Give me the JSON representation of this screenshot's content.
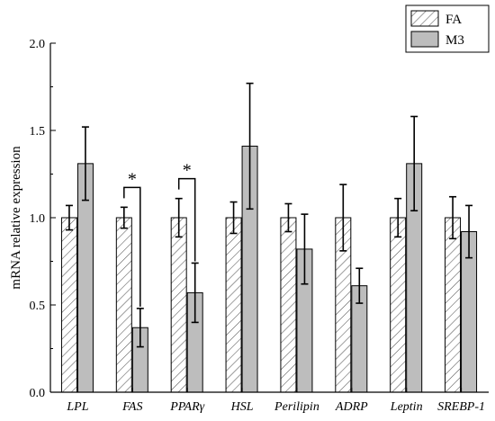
{
  "chart_data": {
    "type": "bar",
    "title": "",
    "xlabel": "",
    "ylabel": "mRNA relative expression",
    "ylim": [
      0,
      2.0
    ],
    "yticks": [
      "0.0",
      "0.5",
      "1.0",
      "1.5",
      "2.0"
    ],
    "categories": [
      "LPL",
      "FAS",
      "PPARγ",
      "HSL",
      "Perilipin",
      "ADRP",
      "Leptin",
      "SREBP-1"
    ],
    "series": [
      {
        "name": "FA",
        "pattern": "diagonal-hatch",
        "fill": "#ffffff",
        "values": [
          1.0,
          1.0,
          1.0,
          1.0,
          1.0,
          1.0,
          1.0,
          1.0
        ],
        "errors": [
          0.07,
          0.06,
          0.11,
          0.09,
          0.08,
          0.19,
          0.11,
          0.12
        ]
      },
      {
        "name": "M3",
        "pattern": "solid",
        "fill": "#bdbdbd",
        "values": [
          1.31,
          0.37,
          0.57,
          1.41,
          0.82,
          0.61,
          1.31,
          0.92
        ],
        "errors": [
          0.21,
          0.11,
          0.17,
          0.36,
          0.2,
          0.1,
          0.27,
          0.15
        ]
      }
    ],
    "significance": [
      {
        "category": "FAS",
        "label": "*"
      },
      {
        "category": "PPARγ",
        "label": "*"
      }
    ],
    "legend_position": "top-right",
    "grid": false
  }
}
